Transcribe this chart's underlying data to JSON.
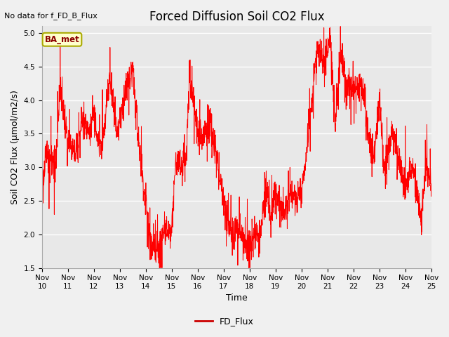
{
  "title": "Forced Diffusion Soil CO2 Flux",
  "no_data_label": "No data for f_FD_B_Flux",
  "xlabel": "Time",
  "ylabel": "Soil CO2 Flux (μmol/m2/s)",
  "ylim": [
    1.5,
    5.1
  ],
  "yticks": [
    1.5,
    2.0,
    2.5,
    3.0,
    3.5,
    4.0,
    4.5,
    5.0
  ],
  "legend_label": "FD_Flux",
  "line_color": "red",
  "legend_line_color": "#cc0000",
  "ba_met_label": "BA_met",
  "background_color": "#f0f0f0",
  "plot_bg_color": "#e8e8e8",
  "title_fontsize": 12,
  "axis_label_fontsize": 9,
  "tick_label_fontsize": 7.5,
  "x_start_day": 10,
  "x_end_day": 25,
  "xtick_days": [
    10,
    11,
    12,
    13,
    14,
    15,
    16,
    17,
    18,
    19,
    20,
    21,
    22,
    23,
    24,
    25
  ],
  "xtick_labels": [
    "Nov 10",
    "Nov 11",
    "Nov 12",
    "Nov 13",
    "Nov 14",
    "Nov 15",
    "Nov 16",
    "Nov 17",
    "Nov 18",
    "Nov 19",
    "Nov 20",
    "Nov 21",
    "Nov 22",
    "Nov 23",
    "Nov 24",
    "Nov 25"
  ]
}
